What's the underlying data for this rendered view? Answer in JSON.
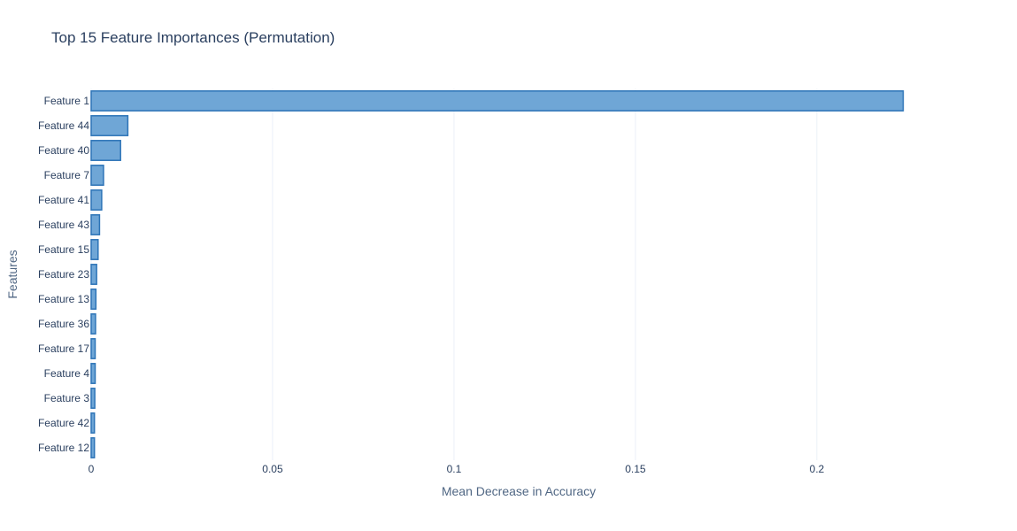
{
  "chart_data": {
    "type": "bar",
    "orientation": "horizontal",
    "title": "Top 15 Feature Importances (Permutation)",
    "xlabel": "Mean Decrease in Accuracy",
    "ylabel": "Features",
    "categories": [
      "Feature 1",
      "Feature 44",
      "Feature 40",
      "Feature 7",
      "Feature 41",
      "Feature 43",
      "Feature 15",
      "Feature 23",
      "Feature 13",
      "Feature 36",
      "Feature 17",
      "Feature 4",
      "Feature 3",
      "Feature 42",
      "Feature 12"
    ],
    "values": [
      0.2238,
      0.0101,
      0.0081,
      0.0034,
      0.0029,
      0.0023,
      0.0019,
      0.0015,
      0.0013,
      0.0012,
      0.0011,
      0.0011,
      0.001,
      0.0009,
      0.0009
    ],
    "xticks": [
      0,
      0.05,
      0.1,
      0.15,
      0.2
    ],
    "xtick_labels": [
      "0",
      "0.05",
      "0.1",
      "0.15",
      "0.2"
    ],
    "xlim": [
      0,
      0.2437
    ],
    "grid": true,
    "colors": {
      "bar_fill": "#6fa6d6",
      "bar_stroke": "#2d74b7",
      "grid": "#ebf0f8",
      "text": "#2a3f5f",
      "axis_label": "#506784"
    }
  }
}
